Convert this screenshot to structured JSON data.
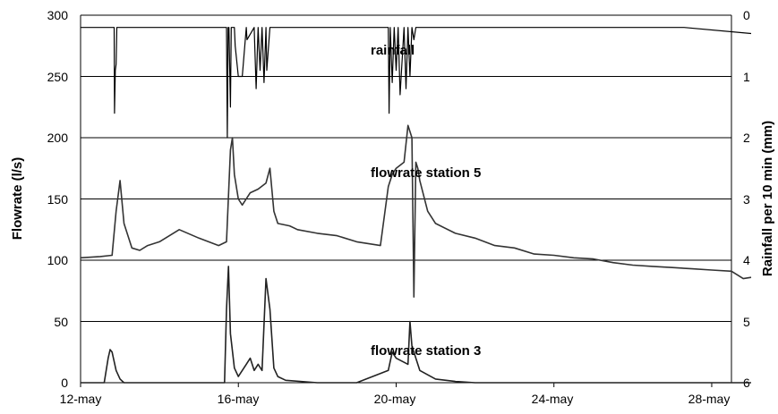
{
  "chart_data": {
    "type": "line",
    "title": "",
    "xlabel": "",
    "ylabel": "Flowrate (l/s)",
    "ylabel_right": "Rainfall per 10 min (mm)",
    "ylim": [
      0,
      300
    ],
    "ylim_right": [
      0,
      6
    ],
    "right_axis_inverted": true,
    "x_ticks": [
      "12-may",
      "16-may",
      "20-may",
      "24-may",
      "28-may"
    ],
    "y_ticks": [
      "0",
      "50",
      "100",
      "150",
      "200",
      "250",
      "300"
    ],
    "y_ticks_right": [
      "0",
      "1",
      "2",
      "3",
      "4",
      "5",
      "6"
    ],
    "grid": "horizontal",
    "annotations": [
      {
        "text": "rainfall",
        "series": "rainfall"
      },
      {
        "text": "flowrate station 5",
        "series": "flowrate station 5"
      },
      {
        "text": "flowrate station 3",
        "series": "flowrate station 3"
      }
    ],
    "series": [
      {
        "key": "rainfall",
        "axis": "right",
        "color": "#000000",
        "x_days": [
          0,
          0.85,
          0.86,
          0.88,
          0.9,
          0.92,
          0.94,
          0.96,
          1.0,
          3.7,
          3.72,
          3.74,
          3.76,
          3.8,
          3.82,
          3.9,
          3.92,
          4.0,
          4.1,
          4.2,
          4.22,
          4.4,
          4.45,
          4.5,
          4.55,
          4.6,
          4.65,
          4.7,
          4.72,
          4.8,
          5.0,
          7.8,
          7.82,
          7.85,
          7.9,
          7.95,
          8.0,
          8.05,
          8.1,
          8.2,
          8.25,
          8.3,
          8.35,
          8.4,
          8.45,
          8.5,
          8.6,
          8.7,
          15.3,
          17.0
        ],
        "y": [
          0.2,
          0.2,
          1.6,
          0.9,
          0.8,
          0.2,
          0.2,
          0.2,
          0.2,
          0.2,
          2.0,
          0.2,
          0.2,
          1.5,
          0.2,
          0.2,
          0.5,
          1.0,
          1.0,
          0.2,
          0.4,
          0.2,
          1.2,
          0.2,
          0.9,
          0.2,
          1.1,
          0.2,
          0.9,
          0.2,
          0.2,
          0.2,
          1.6,
          0.2,
          1.1,
          0.2,
          0.9,
          0.2,
          1.3,
          0.2,
          1.2,
          0.2,
          1.0,
          0.2,
          0.4,
          0.2,
          0.2,
          0.2,
          0.2,
          0.3
        ]
      },
      {
        "key": "flowrate station 5",
        "axis": "left",
        "color": "#333333",
        "x_days": [
          0,
          0.5,
          0.8,
          0.9,
          1.0,
          1.1,
          1.3,
          1.5,
          1.7,
          2.0,
          2.5,
          3.0,
          3.5,
          3.7,
          3.8,
          3.85,
          3.9,
          4.0,
          4.1,
          4.3,
          4.5,
          4.7,
          4.8,
          4.9,
          5.0,
          5.3,
          5.5,
          6.0,
          6.5,
          7.0,
          7.6,
          7.8,
          7.9,
          8.0,
          8.2,
          8.3,
          8.4,
          8.45,
          8.5,
          8.55,
          8.6,
          8.8,
          9.0,
          9.5,
          10.0,
          10.5,
          11.0,
          11.5,
          12.0,
          12.5,
          13.0,
          13.5,
          14.0,
          14.5,
          15.0,
          15.5,
          16.0,
          16.5,
          16.8,
          17.0
        ],
        "y": [
          102,
          103,
          104,
          140,
          165,
          130,
          110,
          108,
          112,
          115,
          125,
          118,
          112,
          115,
          190,
          200,
          170,
          150,
          145,
          155,
          158,
          163,
          175,
          140,
          130,
          128,
          125,
          122,
          120,
          115,
          112,
          160,
          170,
          175,
          180,
          210,
          200,
          70,
          180,
          175,
          165,
          140,
          130,
          122,
          118,
          112,
          110,
          105,
          104,
          102,
          101,
          98,
          96,
          95,
          94,
          93,
          92,
          91,
          85,
          86
        ]
      },
      {
        "key": "flowrate station 3",
        "axis": "left",
        "color": "#222222",
        "x_days": [
          0,
          0.6,
          0.7,
          0.75,
          0.8,
          0.9,
          1.0,
          1.1,
          1.5,
          2.0,
          3.0,
          3.65,
          3.7,
          3.75,
          3.8,
          3.9,
          4.0,
          4.2,
          4.3,
          4.4,
          4.5,
          4.6,
          4.7,
          4.8,
          4.9,
          5.0,
          5.2,
          6.0,
          7.0,
          7.8,
          7.9,
          8.0,
          8.3,
          8.35,
          8.4,
          8.6,
          9.0,
          9.5,
          10.0,
          11.0,
          12.0,
          13.0,
          14.0,
          15.0,
          16.0,
          17.0
        ],
        "y": [
          0,
          0,
          20,
          27,
          25,
          10,
          3,
          0,
          0,
          0,
          0,
          0,
          60,
          95,
          40,
          12,
          5,
          15,
          20,
          10,
          15,
          10,
          85,
          60,
          12,
          5,
          2,
          0,
          0,
          10,
          25,
          20,
          15,
          50,
          30,
          10,
          3,
          1,
          0,
          0,
          0,
          0,
          0,
          0,
          0,
          0
        ]
      }
    ]
  }
}
